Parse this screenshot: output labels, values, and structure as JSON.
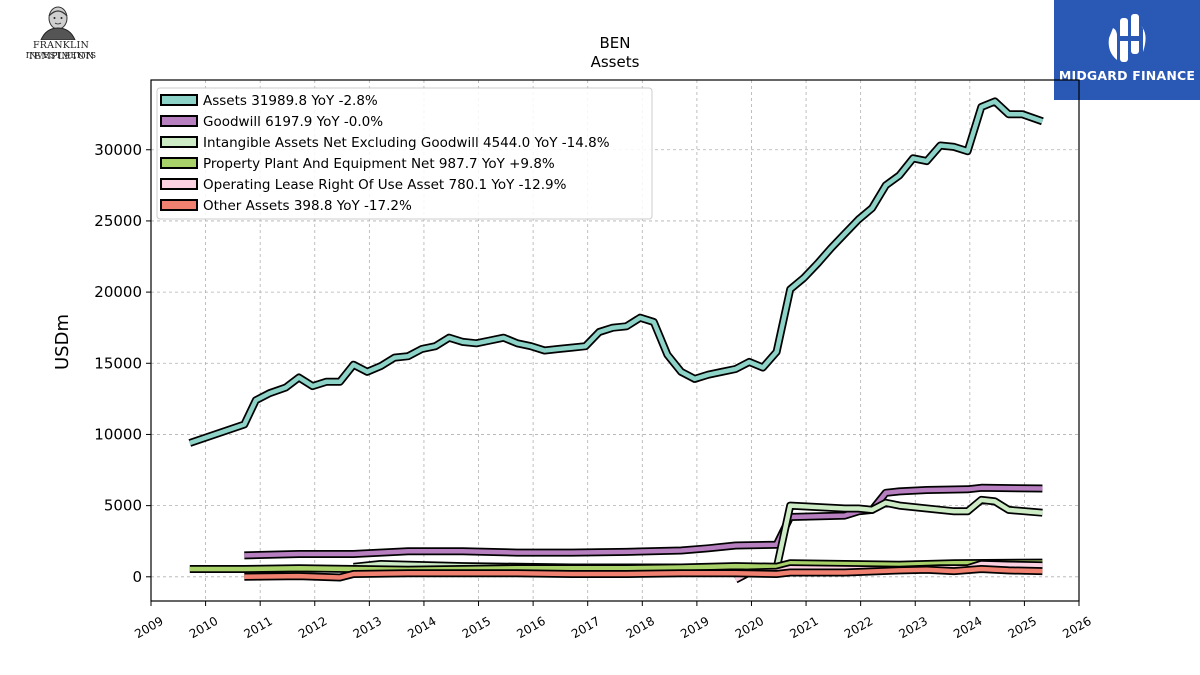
{
  "branding": {
    "left_logo": {
      "line1": "FRANKLIN TEMPLETON",
      "line2": "INVESTMENTS"
    },
    "right_logo": {
      "name": "MIDGARD FINANCE",
      "bg_color": "#2a58b5"
    }
  },
  "chart_data": {
    "type": "line",
    "title": "BEN",
    "subtitle": "Assets",
    "ylabel": "USDm",
    "xlabel": "",
    "xlim": [
      2009,
      2026
    ],
    "ylim": [
      -1700,
      34900
    ],
    "x_ticks": [
      "2009",
      "2010",
      "2011",
      "2012",
      "2013",
      "2014",
      "2015",
      "2016",
      "2017",
      "2018",
      "2019",
      "2020",
      "2021",
      "2022",
      "2023",
      "2024",
      "2025",
      "2026"
    ],
    "y_ticks": [
      "0",
      "5000",
      "10000",
      "15000",
      "20000",
      "25000",
      "30000"
    ],
    "grid": true,
    "legend_position": "top-left",
    "series": [
      {
        "name": "Assets",
        "legend": "Assets  31989.8 YoY -2.8%",
        "color": "#8dd3c7",
        "points": [
          [
            2009.71,
            9400
          ],
          [
            2010.71,
            10700
          ],
          [
            2010.92,
            12400
          ],
          [
            2011.17,
            12900
          ],
          [
            2011.47,
            13300
          ],
          [
            2011.71,
            14000
          ],
          [
            2011.96,
            13400
          ],
          [
            2012.21,
            13700
          ],
          [
            2012.46,
            13700
          ],
          [
            2012.71,
            14900
          ],
          [
            2012.96,
            14400
          ],
          [
            2013.21,
            14800
          ],
          [
            2013.46,
            15400
          ],
          [
            2013.71,
            15500
          ],
          [
            2013.96,
            16000
          ],
          [
            2014.21,
            16200
          ],
          [
            2014.46,
            16800
          ],
          [
            2014.71,
            16500
          ],
          [
            2014.96,
            16400
          ],
          [
            2015.21,
            16600
          ],
          [
            2015.46,
            16800
          ],
          [
            2015.71,
            16400
          ],
          [
            2015.96,
            16200
          ],
          [
            2016.21,
            15900
          ],
          [
            2016.46,
            16000
          ],
          [
            2016.71,
            16100
          ],
          [
            2016.96,
            16200
          ],
          [
            2017.21,
            17200
          ],
          [
            2017.46,
            17500
          ],
          [
            2017.71,
            17600
          ],
          [
            2017.96,
            18200
          ],
          [
            2018.21,
            17900
          ],
          [
            2018.46,
            15600
          ],
          [
            2018.71,
            14400
          ],
          [
            2018.96,
            13900
          ],
          [
            2019.21,
            14200
          ],
          [
            2019.46,
            14400
          ],
          [
            2019.71,
            14600
          ],
          [
            2019.96,
            15100
          ],
          [
            2020.21,
            14700
          ],
          [
            2020.46,
            15800
          ],
          [
            2020.71,
            20200
          ],
          [
            2020.96,
            21000
          ],
          [
            2021.21,
            22000
          ],
          [
            2021.46,
            23100
          ],
          [
            2021.71,
            24100
          ],
          [
            2021.96,
            25100
          ],
          [
            2022.21,
            25900
          ],
          [
            2022.46,
            27500
          ],
          [
            2022.71,
            28200
          ],
          [
            2022.96,
            29400
          ],
          [
            2023.21,
            29200
          ],
          [
            2023.46,
            30300
          ],
          [
            2023.71,
            30200
          ],
          [
            2023.96,
            29900
          ],
          [
            2024.21,
            33000
          ],
          [
            2024.46,
            33400
          ],
          [
            2024.71,
            32500
          ],
          [
            2024.96,
            32500
          ],
          [
            2025.33,
            32000
          ]
        ]
      },
      {
        "name": "Goodwill",
        "legend": "Goodwill  6197.9 YoY -0.0%",
        "color": "#b87fc0",
        "points": [
          [
            2010.71,
            1500
          ],
          [
            2011.71,
            1600
          ],
          [
            2012.71,
            1600
          ],
          [
            2013.21,
            1700
          ],
          [
            2013.71,
            1800
          ],
          [
            2014.71,
            1800
          ],
          [
            2015.71,
            1700
          ],
          [
            2016.71,
            1700
          ],
          [
            2017.71,
            1750
          ],
          [
            2018.71,
            1850
          ],
          [
            2019.21,
            2000
          ],
          [
            2019.71,
            2200
          ],
          [
            2020.46,
            2250
          ],
          [
            2020.71,
            4200
          ],
          [
            2021.71,
            4300
          ],
          [
            2021.96,
            4600
          ],
          [
            2022.21,
            4700
          ],
          [
            2022.46,
            5900
          ],
          [
            2022.71,
            6000
          ],
          [
            2023.21,
            6100
          ],
          [
            2023.96,
            6150
          ],
          [
            2024.21,
            6250
          ],
          [
            2025.33,
            6200
          ]
        ]
      },
      {
        "name": "Intangible Assets Net Excluding Goodwill",
        "legend": "Intangible Assets Net Excluding Goodwill  4544.0 YoY -14.8%",
        "color": "#cdebc5",
        "points": [
          [
            2012.71,
            700
          ],
          [
            2013.21,
            900
          ],
          [
            2013.71,
            850
          ],
          [
            2014.71,
            750
          ],
          [
            2016.71,
            650
          ],
          [
            2018.71,
            650
          ],
          [
            2019.71,
            600
          ],
          [
            2020.46,
            600
          ],
          [
            2020.71,
            5000
          ],
          [
            2021.71,
            4800
          ],
          [
            2021.96,
            4800
          ],
          [
            2022.21,
            4700
          ],
          [
            2022.46,
            5200
          ],
          [
            2022.71,
            5000
          ],
          [
            2023.71,
            4600
          ],
          [
            2023.96,
            4600
          ],
          [
            2024.21,
            5400
          ],
          [
            2024.46,
            5300
          ],
          [
            2024.71,
            4700
          ],
          [
            2025.33,
            4500
          ]
        ]
      },
      {
        "name": "Property Plant And Equipment Net",
        "legend": "Property Plant And Equipment Net  987.7 YoY +9.8%",
        "color": "#a9d16a",
        "points": [
          [
            2009.71,
            550
          ],
          [
            2010.71,
            550
          ],
          [
            2011.71,
            600
          ],
          [
            2012.71,
            550
          ],
          [
            2013.71,
            500
          ],
          [
            2014.71,
            550
          ],
          [
            2015.71,
            600
          ],
          [
            2016.71,
            600
          ],
          [
            2017.71,
            600
          ],
          [
            2018.71,
            650
          ],
          [
            2019.71,
            750
          ],
          [
            2020.46,
            700
          ],
          [
            2020.71,
            950
          ],
          [
            2021.71,
            900
          ],
          [
            2022.71,
            850
          ],
          [
            2023.71,
            950
          ],
          [
            2025.33,
            1000
          ]
        ]
      },
      {
        "name": "Operating Lease Right Of Use Asset",
        "legend": "Operating Lease Right Of Use Asset  780.1 YoY -12.9%",
        "color": "#fbd0e0",
        "points": [
          [
            2019.71,
            -200
          ],
          [
            2019.96,
            300
          ],
          [
            2020.46,
            350
          ],
          [
            2020.71,
            600
          ],
          [
            2021.71,
            550
          ],
          [
            2022.71,
            500
          ],
          [
            2023.46,
            600
          ],
          [
            2023.96,
            600
          ],
          [
            2024.21,
            900
          ],
          [
            2024.71,
            850
          ],
          [
            2025.33,
            800
          ]
        ]
      },
      {
        "name": "Other Assets",
        "legend": "Other Assets  398.8 YoY -17.2%",
        "color": "#f08070",
        "points": [
          [
            2010.71,
            0
          ],
          [
            2011.71,
            50
          ],
          [
            2012.46,
            -50
          ],
          [
            2012.71,
            200
          ],
          [
            2013.71,
            250
          ],
          [
            2014.71,
            250
          ],
          [
            2015.71,
            250
          ],
          [
            2016.71,
            200
          ],
          [
            2017.71,
            200
          ],
          [
            2018.71,
            250
          ],
          [
            2019.71,
            250
          ],
          [
            2020.46,
            200
          ],
          [
            2020.71,
            300
          ],
          [
            2021.71,
            300
          ],
          [
            2022.71,
            450
          ],
          [
            2023.21,
            500
          ],
          [
            2023.71,
            400
          ],
          [
            2024.21,
            550
          ],
          [
            2024.71,
            450
          ],
          [
            2025.33,
            400
          ]
        ]
      }
    ]
  }
}
